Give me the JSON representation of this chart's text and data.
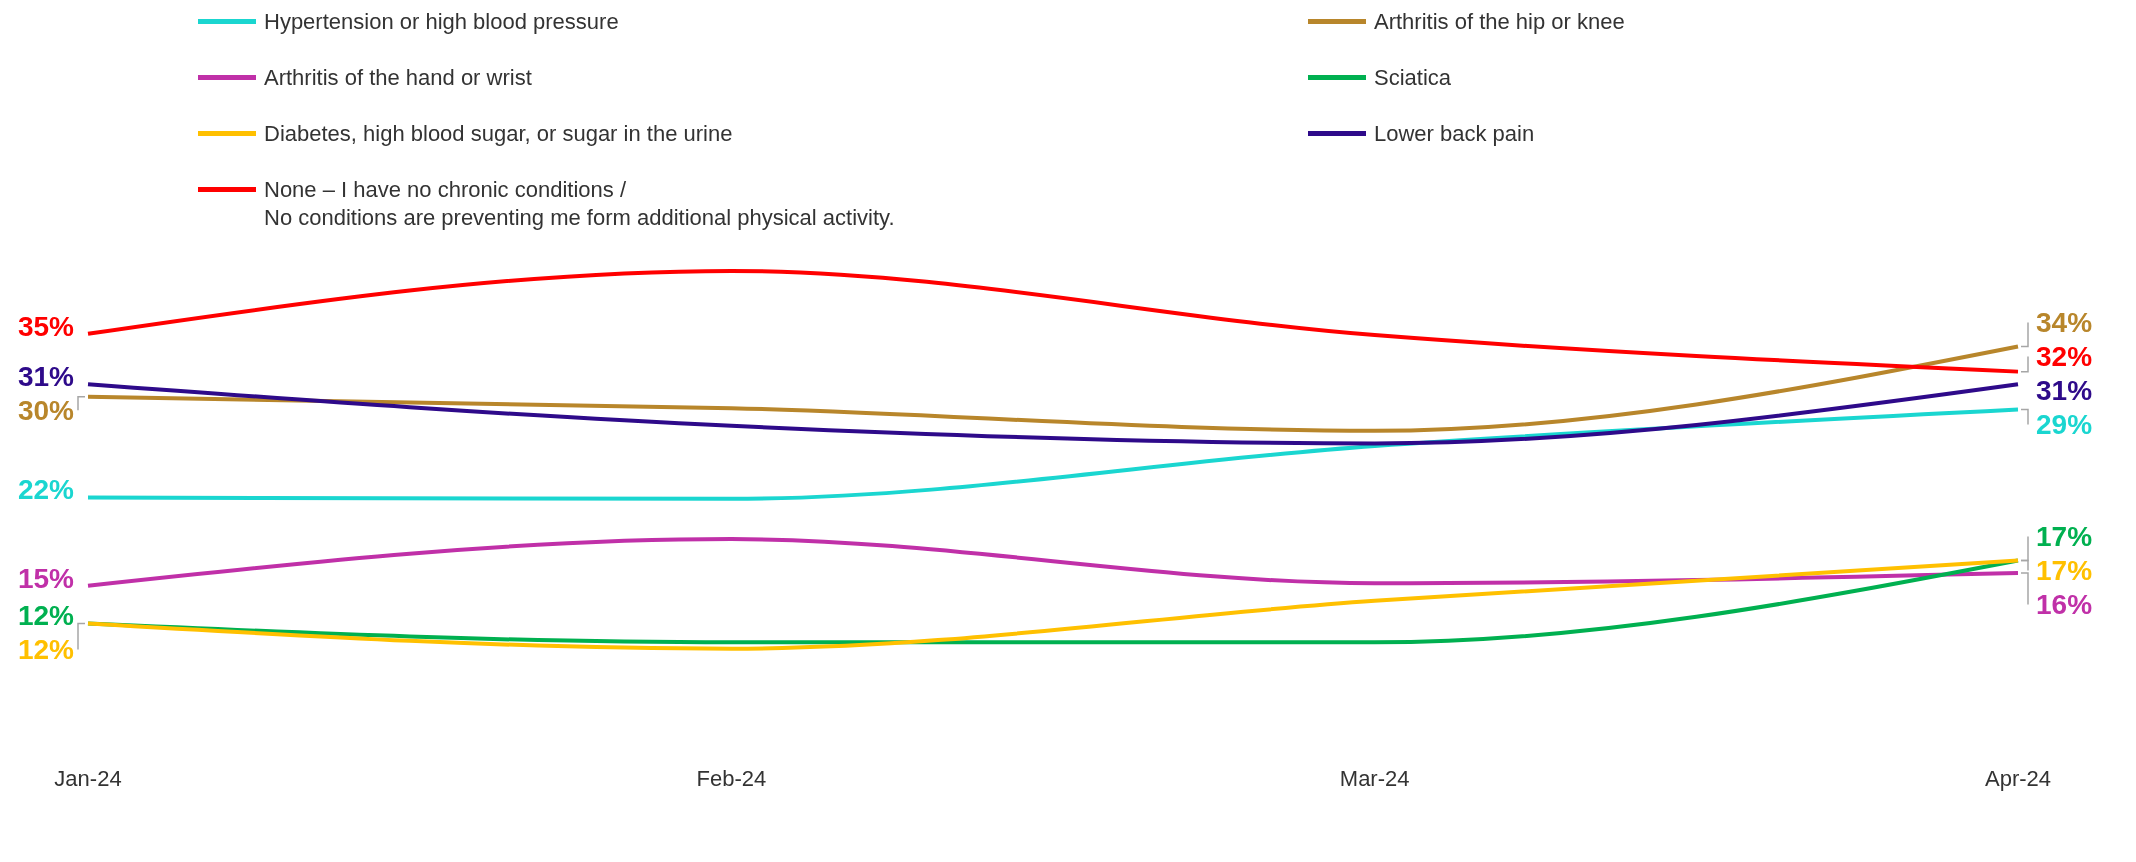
{
  "chart_data": {
    "type": "line",
    "categories": [
      "Jan-24",
      "Feb-24",
      "Mar-24",
      "Apr-24"
    ],
    "legend": "top",
    "marker": "none",
    "line_style": "solid",
    "series": [
      {
        "name": "Hypertension or high blood pressure",
        "color": "#1ad6d0",
        "values": [
          22,
          21.9,
          26.1,
          29
        ],
        "value_labels": [
          "22%",
          null,
          null,
          "29%"
        ]
      },
      {
        "name": "Arthritis of the hip or knee",
        "color": "#b8862b",
        "values": [
          30,
          29.1,
          27.3,
          34
        ],
        "value_labels": [
          "30%",
          null,
          null,
          "34%"
        ]
      },
      {
        "name": "Arthritis of the hand or wrist",
        "color": "#c030a8",
        "values": [
          15,
          18.7,
          15.2,
          16
        ],
        "value_labels": [
          "15%",
          null,
          null,
          "16%"
        ]
      },
      {
        "name": "Sciatica",
        "color": "#00b050",
        "values": [
          12,
          10.5,
          10.5,
          17
        ],
        "value_labels": [
          "12%",
          null,
          null,
          "17%"
        ]
      },
      {
        "name": "Diabetes, high blood sugar, or sugar in the urine",
        "color": "#ffc000",
        "values": [
          12,
          10,
          13.8,
          17
        ],
        "value_labels": [
          "12%",
          null,
          null,
          "17%"
        ]
      },
      {
        "name": "Lower back pain",
        "color": "#2e0a8a",
        "values": [
          31,
          27.7,
          26.3,
          31
        ],
        "value_labels": [
          "31%",
          null,
          null,
          "31%"
        ]
      },
      {
        "name": "None – I have no chronic conditions /\nNo conditions are preventing me form additional physical activity.",
        "color": "#ff0000",
        "values": [
          35,
          40,
          34.9,
          32
        ],
        "value_labels": [
          "35%",
          null,
          null,
          "32%"
        ]
      }
    ]
  }
}
